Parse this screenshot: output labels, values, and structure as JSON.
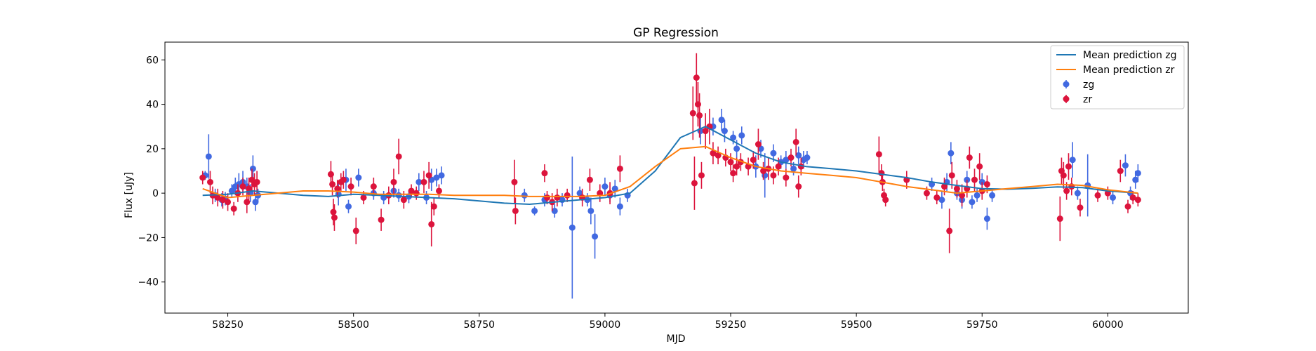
{
  "chart_data": {
    "type": "scatter",
    "title": "GP Regression",
    "xlabel": "MJD",
    "ylabel": "Flux [uJy]",
    "xlim": [
      58125,
      60160
    ],
    "ylim": [
      -54,
      68
    ],
    "xticks": [
      58250,
      58500,
      58750,
      59000,
      59250,
      59500,
      59750,
      60000
    ],
    "yticks": [
      -40,
      -20,
      0,
      20,
      40,
      60
    ],
    "grid": false,
    "legend_position": "top-right",
    "colors": {
      "zg_line": "#1f77b4",
      "zr_line": "#ff7f0e",
      "zg_points": "#4169e1",
      "zr_points": "#dc143c"
    },
    "lines": [
      {
        "name": "Mean prediction zg",
        "color": "#1f77b4",
        "x": [
          58200,
          58250,
          58300,
          58350,
          58400,
          58450,
          58500,
          58550,
          58600,
          58650,
          58700,
          58750,
          58800,
          58850,
          58900,
          58950,
          59000,
          59050,
          59100,
          59150,
          59200,
          59250,
          59300,
          59350,
          59400,
          59450,
          59500,
          59550,
          59600,
          59650,
          59700,
          59750,
          59800,
          59850,
          59900,
          59950,
          60000,
          60060
        ],
        "y": [
          -1,
          -0.5,
          1,
          0,
          -1,
          -1.5,
          -0.5,
          -1,
          -1.5,
          -2,
          -2.5,
          -3.5,
          -4.5,
          -5,
          -4,
          -3,
          -2,
          0,
          10,
          25,
          30,
          24,
          18,
          14,
          12,
          11,
          10,
          8.5,
          7,
          5,
          3.5,
          2,
          1.8,
          2.2,
          2.8,
          2.5,
          1,
          0
        ]
      },
      {
        "name": "Mean prediction zr",
        "color": "#ff7f0e",
        "x": [
          58200,
          58250,
          58300,
          58350,
          58400,
          58450,
          58500,
          58550,
          58600,
          58650,
          58700,
          58750,
          58800,
          58850,
          58900,
          58950,
          59000,
          59050,
          59100,
          59150,
          59200,
          59250,
          59300,
          59350,
          59400,
          59450,
          59500,
          59550,
          59600,
          59650,
          59700,
          59750,
          59800,
          59850,
          59900,
          59950,
          60000,
          60060
        ],
        "y": [
          2,
          -2,
          -1,
          0,
          1,
          1,
          0.5,
          -0.5,
          -0.5,
          -0.5,
          -1,
          -1,
          -1,
          -1.5,
          -1.5,
          -1.5,
          -1,
          3,
          12,
          20,
          21,
          16,
          12,
          10,
          9,
          8,
          7,
          5,
          3,
          1.5,
          0,
          1,
          2,
          3,
          4,
          3.5,
          1.5,
          0
        ]
      }
    ],
    "series": [
      {
        "name": "zg",
        "color": "#4169e1",
        "points": [
          [
            58205,
            8,
            2
          ],
          [
            58212,
            16.5,
            10
          ],
          [
            58225,
            -1,
            3
          ],
          [
            58238,
            -3,
            3
          ],
          [
            58245,
            -2.5,
            3
          ],
          [
            58258,
            1,
            3
          ],
          [
            58265,
            3,
            4
          ],
          [
            58272,
            4,
            5
          ],
          [
            58280,
            5,
            5
          ],
          [
            58288,
            3,
            4
          ],
          [
            58295,
            0,
            4
          ],
          [
            58300,
            11,
            6
          ],
          [
            58305,
            -4,
            4
          ],
          [
            58310,
            -1,
            3
          ],
          [
            58470,
            -0.5,
            5
          ],
          [
            58485,
            6,
            5
          ],
          [
            58490,
            -6,
            3
          ],
          [
            58510,
            7,
            4
          ],
          [
            58540,
            0,
            3
          ],
          [
            58560,
            -2,
            3
          ],
          [
            58580,
            1,
            3
          ],
          [
            58590,
            -1,
            3
          ],
          [
            58610,
            -1.5,
            3
          ],
          [
            58630,
            5,
            4
          ],
          [
            58645,
            -2,
            3
          ],
          [
            58655,
            6,
            5
          ],
          [
            58665,
            7,
            4
          ],
          [
            58675,
            8,
            4
          ],
          [
            58840,
            -1,
            3
          ],
          [
            58860,
            -8,
            2
          ],
          [
            58880,
            -3,
            3
          ],
          [
            58900,
            -8,
            3
          ],
          [
            58915,
            -3,
            3
          ],
          [
            58935,
            -15.5,
            32
          ],
          [
            58950,
            0,
            3
          ],
          [
            58965,
            -3,
            3
          ],
          [
            58972,
            -8,
            6
          ],
          [
            58980,
            -19.5,
            10
          ],
          [
            59000,
            3,
            4
          ],
          [
            59010,
            -1,
            3
          ],
          [
            59020,
            2,
            4
          ],
          [
            59030,
            -6,
            4
          ],
          [
            59045,
            -1,
            3
          ],
          [
            59190,
            28,
            6
          ],
          [
            59215,
            30,
            4
          ],
          [
            59232,
            33,
            5
          ],
          [
            59238,
            28,
            5
          ],
          [
            59255,
            25,
            3
          ],
          [
            59262,
            20,
            4
          ],
          [
            59272,
            26,
            4
          ],
          [
            59300,
            12,
            5
          ],
          [
            59310,
            20,
            4
          ],
          [
            59318,
            8,
            10
          ],
          [
            59335,
            18,
            4
          ],
          [
            59350,
            14,
            3
          ],
          [
            59360,
            15,
            4
          ],
          [
            59375,
            11,
            3
          ],
          [
            59385,
            17,
            4
          ],
          [
            59395,
            15,
            4
          ],
          [
            59402,
            16,
            3
          ],
          [
            59650,
            4,
            3
          ],
          [
            59670,
            -3,
            4
          ],
          [
            59680,
            5,
            4
          ],
          [
            59688,
            18,
            5
          ],
          [
            59700,
            0,
            3
          ],
          [
            59710,
            -3,
            4
          ],
          [
            59720,
            6,
            4
          ],
          [
            59730,
            -4,
            3
          ],
          [
            59740,
            -1,
            3
          ],
          [
            59750,
            5,
            4
          ],
          [
            59760,
            -11.5,
            5
          ],
          [
            59770,
            -1,
            3
          ],
          [
            59930,
            15,
            8
          ],
          [
            59940,
            0,
            3
          ],
          [
            59960,
            3.5,
            14
          ],
          [
            60010,
            -2,
            3
          ],
          [
            60035,
            12.5,
            5
          ],
          [
            60045,
            0,
            3
          ],
          [
            60055,
            6,
            4
          ],
          [
            60060,
            9,
            4
          ]
        ]
      },
      {
        "name": "zr",
        "color": "#dc143c",
        "points": [
          [
            58200,
            7,
            3
          ],
          [
            58215,
            5,
            5
          ],
          [
            58220,
            -1,
            4
          ],
          [
            58230,
            -2,
            4
          ],
          [
            58240,
            -3,
            4
          ],
          [
            58250,
            -4,
            4
          ],
          [
            58262,
            -7,
            3
          ],
          [
            58270,
            0,
            4
          ],
          [
            58280,
            3,
            4
          ],
          [
            58288,
            -4,
            5
          ],
          [
            58292,
            2,
            5
          ],
          [
            58298,
            6,
            5
          ],
          [
            58303,
            4,
            5
          ],
          [
            58308,
            5,
            5
          ],
          [
            58455,
            8.5,
            6
          ],
          [
            58458,
            4,
            5
          ],
          [
            58460,
            -8.5,
            6
          ],
          [
            58462,
            -11,
            6
          ],
          [
            58468,
            2,
            4
          ],
          [
            58475,
            5,
            4
          ],
          [
            58480,
            6,
            4
          ],
          [
            58495,
            3,
            4
          ],
          [
            58505,
            -17,
            6
          ],
          [
            58520,
            -2,
            3
          ],
          [
            58540,
            3,
            4
          ],
          [
            58555,
            -12,
            5
          ],
          [
            58570,
            -1,
            4
          ],
          [
            58580,
            5,
            6
          ],
          [
            58590,
            16.5,
            8
          ],
          [
            58600,
            -3,
            4
          ],
          [
            58615,
            1,
            3
          ],
          [
            58625,
            0,
            3
          ],
          [
            58640,
            5,
            5
          ],
          [
            58650,
            8,
            6
          ],
          [
            58655,
            -14,
            10
          ],
          [
            58660,
            -6,
            4
          ],
          [
            58670,
            1,
            3
          ],
          [
            58820,
            5,
            10
          ],
          [
            58822,
            -8,
            6
          ],
          [
            58880,
            9,
            4
          ],
          [
            58885,
            -2,
            3
          ],
          [
            58895,
            -4,
            4
          ],
          [
            58905,
            -2,
            4
          ],
          [
            58925,
            -1,
            3
          ],
          [
            58955,
            -2,
            4
          ],
          [
            58970,
            6,
            5
          ],
          [
            58990,
            0,
            4
          ],
          [
            59010,
            0,
            5
          ],
          [
            59030,
            11,
            6
          ],
          [
            59175,
            36,
            12
          ],
          [
            59178,
            4.5,
            12
          ],
          [
            59182,
            52,
            11
          ],
          [
            59185,
            40,
            10
          ],
          [
            59188,
            35,
            10
          ],
          [
            59192,
            8,
            6
          ],
          [
            59200,
            28,
            8
          ],
          [
            59208,
            30,
            8
          ],
          [
            59215,
            18,
            5
          ],
          [
            59225,
            17,
            4
          ],
          [
            59240,
            16,
            4
          ],
          [
            59250,
            14,
            4
          ],
          [
            59255,
            9,
            4
          ],
          [
            59262,
            12,
            4
          ],
          [
            59270,
            14,
            4
          ],
          [
            59285,
            12,
            4
          ],
          [
            59295,
            15,
            4
          ],
          [
            59305,
            22,
            7
          ],
          [
            59315,
            10,
            4
          ],
          [
            59325,
            11,
            5
          ],
          [
            59335,
            8,
            4
          ],
          [
            59345,
            12,
            4
          ],
          [
            59360,
            7,
            4
          ],
          [
            59370,
            16,
            4
          ],
          [
            59380,
            23,
            6
          ],
          [
            59385,
            3,
            5
          ],
          [
            59390,
            12,
            4
          ],
          [
            59545,
            17.5,
            8
          ],
          [
            59550,
            9,
            4
          ],
          [
            59552,
            5,
            4
          ],
          [
            59555,
            -1,
            3
          ],
          [
            59558,
            -3,
            3
          ],
          [
            59600,
            6,
            4
          ],
          [
            59640,
            0,
            3
          ],
          [
            59660,
            -2,
            3
          ],
          [
            59675,
            3,
            4
          ],
          [
            59685,
            -17,
            10
          ],
          [
            59690,
            8,
            6
          ],
          [
            59700,
            2,
            4
          ],
          [
            59710,
            -1,
            5
          ],
          [
            59720,
            2,
            4
          ],
          [
            59725,
            16,
            5
          ],
          [
            59735,
            6,
            5
          ],
          [
            59745,
            12,
            6
          ],
          [
            59750,
            1,
            4
          ],
          [
            59760,
            4,
            4
          ],
          [
            59905,
            -11.5,
            10
          ],
          [
            59908,
            10,
            6
          ],
          [
            59912,
            8,
            6
          ],
          [
            59918,
            1,
            4
          ],
          [
            59922,
            12,
            6
          ],
          [
            59928,
            3,
            4
          ],
          [
            59945,
            -6.5,
            4
          ],
          [
            59980,
            -1,
            3
          ],
          [
            60000,
            0,
            3
          ],
          [
            60025,
            10,
            5
          ],
          [
            60040,
            -6,
            3
          ],
          [
            60050,
            -2,
            3
          ],
          [
            60060,
            -3,
            3
          ]
        ]
      }
    ]
  }
}
